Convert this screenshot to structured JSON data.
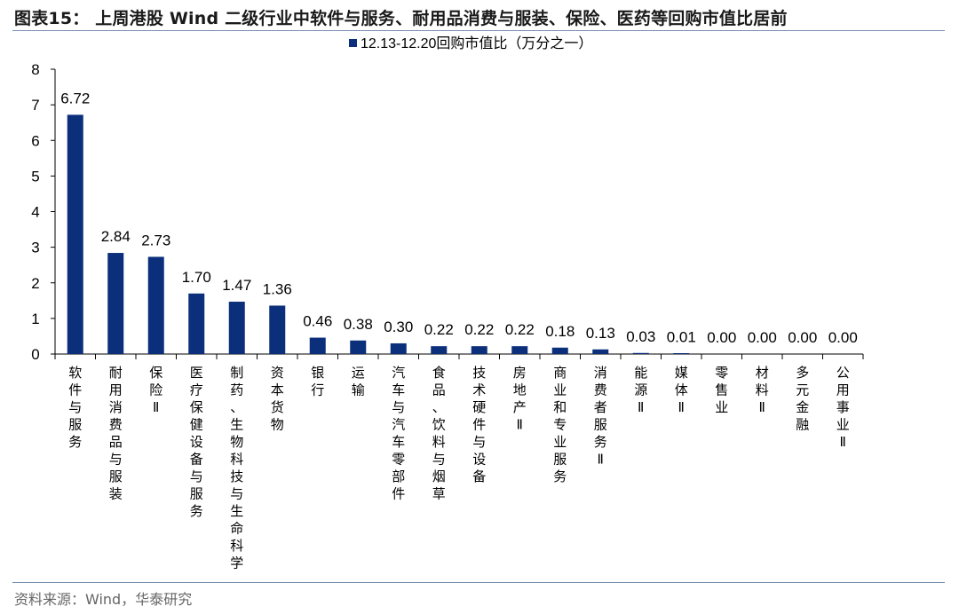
{
  "title": "图表15： 上周港股 Wind 二级行业中软件与服务、耐用品消费与服装、保险、医药等回购市值比居前",
  "source": "资料来源：Wind，华泰研究",
  "colors": {
    "bar": "#0b2f7a",
    "axis": "#000000",
    "rule": "#7a8fb0"
  },
  "chart_data": {
    "type": "bar",
    "categories": [
      "软件与服务",
      "耐用消费品与服装",
      "保险Ⅱ",
      "医疗保健设备与服务",
      "制药、生物科技与生命科学",
      "资本货物",
      "银行",
      "运输",
      "汽车与汽车零部件",
      "食品、饮料与烟草",
      "技术硬件与设备",
      "房地产Ⅱ",
      "商业和专业服务",
      "消费者服务Ⅱ",
      "能源Ⅱ",
      "媒体Ⅱ",
      "零售业",
      "材料Ⅱ",
      "多元金融",
      "公用事业Ⅱ"
    ],
    "series": [
      {
        "name": "12.13-12.20回购市值比（万分之一）",
        "values": [
          6.72,
          2.84,
          2.73,
          1.7,
          1.47,
          1.36,
          0.46,
          0.38,
          0.3,
          0.22,
          0.22,
          0.22,
          0.18,
          0.13,
          0.03,
          0.01,
          0.0,
          0.0,
          0.0,
          0.0
        ]
      }
    ],
    "value_labels": [
      "6.72",
      "2.84",
      "2.73",
      "1.70",
      "1.47",
      "1.36",
      "0.46",
      "0.38",
      "0.30",
      "0.22",
      "0.22",
      "0.22",
      "0.18",
      "0.13",
      "0.03",
      "0.01",
      "0.00",
      "0.00",
      "0.00",
      "0.00"
    ],
    "yticks": [
      "0",
      "1",
      "2",
      "3",
      "4",
      "5",
      "6",
      "7",
      "8"
    ],
    "ylim": [
      0,
      8
    ],
    "grid": false,
    "legend_position": "top-center"
  }
}
